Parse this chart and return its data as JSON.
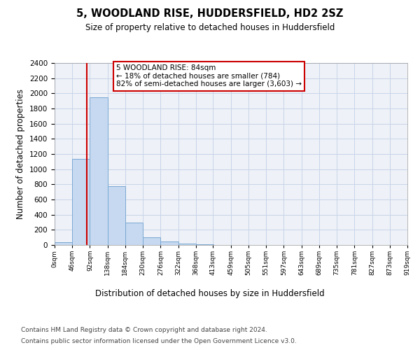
{
  "title1": "5, WOODLAND RISE, HUDDERSFIELD, HD2 2SZ",
  "title2": "Size of property relative to detached houses in Huddersfield",
  "xlabel": "Distribution of detached houses by size in Huddersfield",
  "ylabel": "Number of detached properties",
  "bin_edges": [
    0,
    46,
    92,
    138,
    184,
    230,
    276,
    322,
    368,
    413,
    459,
    505,
    551,
    597,
    643,
    689,
    735,
    781,
    827,
    873,
    919
  ],
  "bar_heights": [
    35,
    1135,
    1950,
    780,
    300,
    100,
    50,
    15,
    5,
    2,
    1,
    0,
    0,
    0,
    0,
    0,
    0,
    0,
    0,
    0
  ],
  "bar_color": "#c6d9f0",
  "bar_edge_color": "#7aa8d4",
  "vline_x": 84,
  "vline_color": "#cc0000",
  "annotation_text": "5 WOODLAND RISE: 84sqm\n← 18% of detached houses are smaller (784)\n82% of semi-detached houses are larger (3,603) →",
  "annotation_box_color": "#cc0000",
  "ylim": [
    0,
    2400
  ],
  "yticks": [
    0,
    200,
    400,
    600,
    800,
    1000,
    1200,
    1400,
    1600,
    1800,
    2000,
    2200,
    2400
  ],
  "tick_labels": [
    "0sqm",
    "46sqm",
    "92sqm",
    "138sqm",
    "184sqm",
    "230sqm",
    "276sqm",
    "322sqm",
    "368sqm",
    "413sqm",
    "459sqm",
    "505sqm",
    "551sqm",
    "597sqm",
    "643sqm",
    "689sqm",
    "735sqm",
    "781sqm",
    "827sqm",
    "873sqm",
    "919sqm"
  ],
  "footer_line1": "Contains HM Land Registry data © Crown copyright and database right 2024.",
  "footer_line2": "Contains public sector information licensed under the Open Government Licence v3.0.",
  "grid_color": "#c8d4e8",
  "background_color": "#eef2f8"
}
